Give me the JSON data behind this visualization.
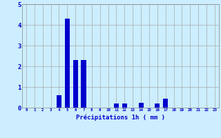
{
  "values": [
    0,
    0,
    0,
    0,
    0.6,
    4.3,
    2.3,
    2.3,
    0,
    0,
    0,
    0.2,
    0.2,
    0,
    0.25,
    0,
    0.2,
    0.45,
    0,
    0,
    0,
    0,
    0,
    0
  ],
  "bar_color": "#0000cc",
  "background_color": "#cceeff",
  "grid_color": "#aaaaaa",
  "xlabel": "Précipitations 1h ( mm )",
  "xlabel_color": "#0000cc",
  "tick_color": "#0000cc",
  "ylim": [
    0,
    5
  ],
  "yticks": [
    0,
    1,
    2,
    3,
    4,
    5
  ],
  "n_bars": 24,
  "bar_width": 0.6
}
